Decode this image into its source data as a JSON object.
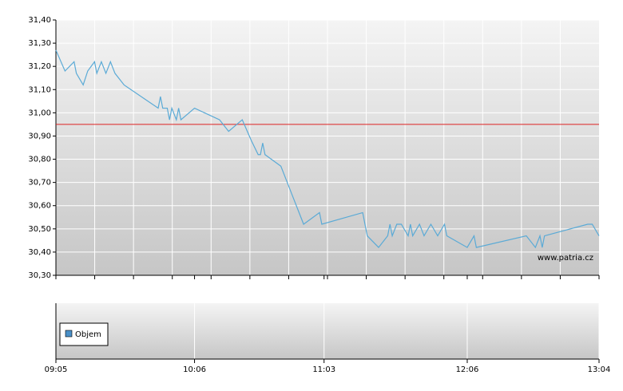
{
  "chart_data": {
    "type": "line",
    "x": [
      "09:05",
      "09:09",
      "09:13",
      "09:14",
      "09:17",
      "09:19",
      "09:22",
      "09:23",
      "09:25",
      "09:27",
      "09:29",
      "09:31",
      "09:35",
      "09:50",
      "09:51",
      "09:52",
      "09:54",
      "09:55",
      "09:56",
      "09:58",
      "09:59",
      "10:00",
      "10:06",
      "10:17",
      "10:21",
      "10:27",
      "10:31",
      "10:34",
      "10:35",
      "10:36",
      "10:37",
      "10:44",
      "10:46",
      "10:50",
      "10:54",
      "11:01",
      "11:02",
      "11:20",
      "11:21",
      "11:22",
      "11:27",
      "11:31",
      "11:32",
      "11:33",
      "11:35",
      "11:37",
      "11:40",
      "11:41",
      "11:42",
      "11:45",
      "11:47",
      "11:50",
      "11:53",
      "11:56",
      "11:57",
      "12:06",
      "12:09",
      "12:10",
      "12:32",
      "12:36",
      "12:38",
      "12:39",
      "12:40",
      "12:59",
      "13:01",
      "13:04"
    ],
    "series": [
      {
        "color": "#5aaad6",
        "values": [
          31.27,
          31.18,
          31.22,
          31.17,
          31.12,
          31.18,
          31.22,
          31.17,
          31.22,
          31.17,
          31.22,
          31.17,
          31.12,
          31.02,
          31.07,
          31.02,
          31.02,
          30.97,
          31.02,
          30.97,
          31.02,
          30.97,
          31.02,
          30.97,
          30.92,
          30.97,
          30.88,
          30.82,
          30.82,
          30.87,
          30.82,
          30.77,
          30.72,
          30.62,
          30.52,
          30.57,
          30.52,
          30.57,
          30.52,
          30.47,
          30.42,
          30.47,
          30.52,
          30.47,
          30.52,
          30.52,
          30.47,
          30.52,
          30.47,
          30.52,
          30.47,
          30.52,
          30.47,
          30.52,
          30.47,
          30.42,
          30.47,
          30.42,
          30.47,
          30.42,
          30.47,
          30.42,
          30.47,
          30.52,
          30.52,
          30.47
        ]
      }
    ],
    "ref_line": {
      "value": 30.95,
      "color": "#dd2222"
    },
    "xlim": [
      "09:05",
      "13:04"
    ],
    "xticks": [
      "09:05",
      "10:06",
      "11:03",
      "12:06",
      "13:04"
    ],
    "ylim": [
      30.3,
      31.4
    ],
    "yticks": [
      {
        "value": 30.3,
        "label": "30,30"
      },
      {
        "value": 30.4,
        "label": "30,40"
      },
      {
        "value": 30.5,
        "label": "30,50"
      },
      {
        "value": 30.6,
        "label": "30,60"
      },
      {
        "value": 30.7,
        "label": "30,70"
      },
      {
        "value": 30.8,
        "label": "30,80"
      },
      {
        "value": 30.9,
        "label": "30,90"
      },
      {
        "value": 31.0,
        "label": "31,00"
      },
      {
        "value": 31.1,
        "label": "31,10"
      },
      {
        "value": 31.2,
        "label": "31,20"
      },
      {
        "value": 31.3,
        "label": "31,30"
      },
      {
        "value": 31.4,
        "label": "31,40"
      }
    ],
    "grid": true,
    "watermark": "www.patria.cz",
    "volume": {
      "name": "Objem",
      "color": "#4a90c8"
    }
  }
}
